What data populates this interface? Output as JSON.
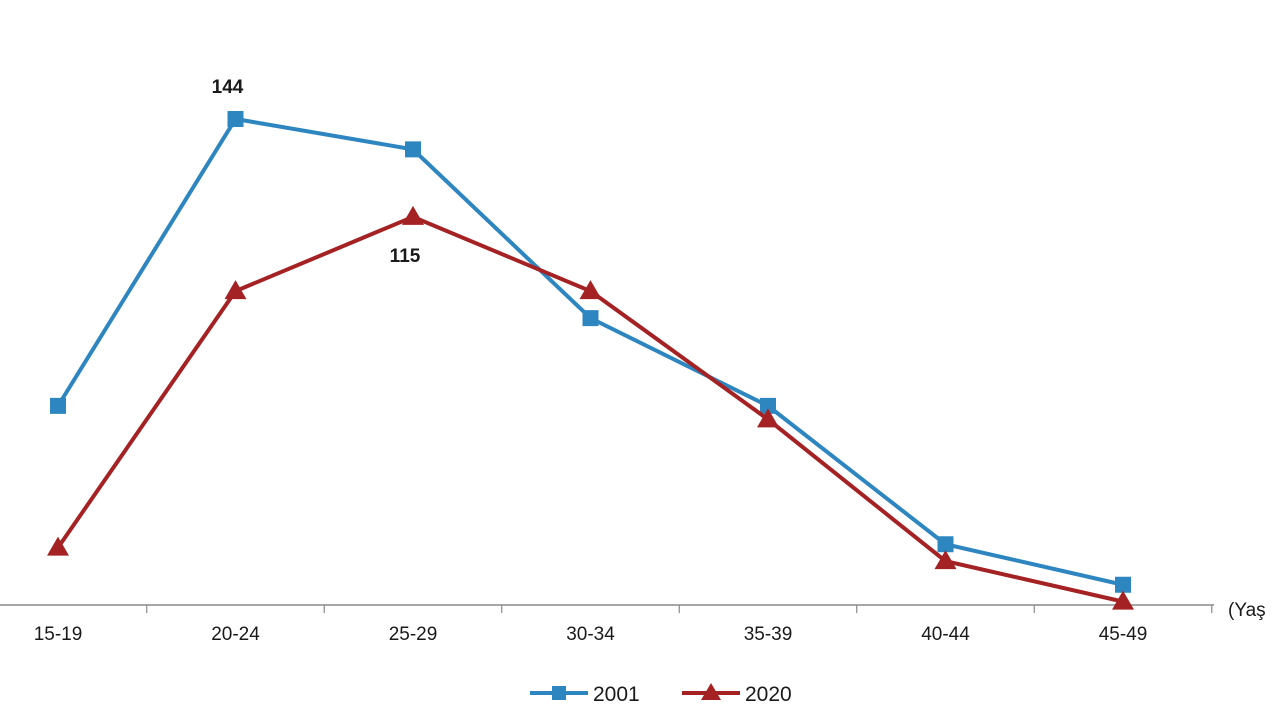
{
  "chart_data": {
    "type": "line",
    "categories": [
      "15-19",
      "20-24",
      "25-29",
      "30-34",
      "35-39",
      "40-44",
      "45-49"
    ],
    "xlabel": "(Yaş",
    "ylim": [
      0,
      170
    ],
    "grid": false,
    "legend_position": "bottom",
    "series": [
      {
        "name": "2001",
        "values": [
          59,
          144,
          135,
          85,
          59,
          18,
          6
        ],
        "color": "#2e86c1",
        "marker": "square",
        "data_labels": [
          null,
          "144",
          null,
          null,
          null,
          null,
          null
        ]
      },
      {
        "name": "2020",
        "values": [
          17,
          93,
          115,
          93,
          55,
          13,
          1
        ],
        "color": "#a52224",
        "marker": "triangle",
        "data_labels": [
          null,
          null,
          "115",
          null,
          null,
          null,
          null
        ]
      }
    ]
  }
}
